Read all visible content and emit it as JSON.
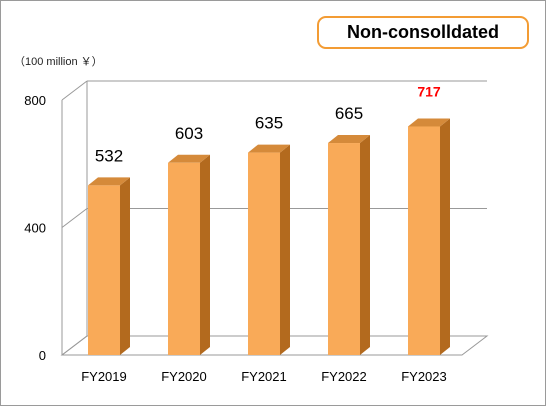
{
  "badge": "Non-consolldated",
  "unit_label": "（100 million ￥）",
  "colors": {
    "bar_front": "#f9aa58",
    "bar_side": "#b36a1e",
    "bar_top": "#d58a3a",
    "highlight_label": "#ff0000",
    "label": "#000000",
    "grid": "#999999",
    "badge_border": "#f39c34"
  },
  "chart_data": {
    "type": "bar",
    "style": "3d",
    "title": "",
    "xlabel": "",
    "ylabel": "",
    "categories": [
      "FY2019",
      "FY2020",
      "FY2021",
      "FY2022",
      "FY2023"
    ],
    "values": [
      532,
      603,
      635,
      665,
      717
    ],
    "data_labels": [
      "532",
      "603",
      "635",
      "665",
      "717"
    ],
    "highlight_index": 4,
    "yticks": [
      0,
      400,
      800
    ],
    "ylim": [
      0,
      800
    ],
    "grid": true,
    "legend": "none"
  }
}
